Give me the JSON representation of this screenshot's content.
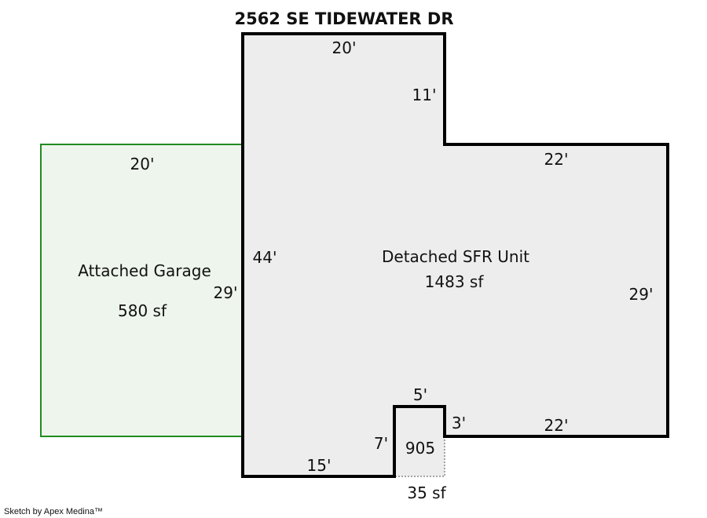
{
  "title": "2562 SE TIDEWATER DR",
  "credit": "Sketch by Apex Medina™",
  "colors": {
    "main_fill": "#ededed",
    "outline": "#000000",
    "garage_fill": "#eef5ec",
    "garage_outline": "#228b22"
  },
  "areas": {
    "main": {
      "name": "Detached SFR Unit",
      "area": "1483 sf"
    },
    "garage": {
      "name": "Attached Garage",
      "area": "580 sf"
    },
    "small": {
      "name": "905",
      "area": "35 sf"
    }
  },
  "dimensions": {
    "main_top": "20'",
    "main_notch_side": "11'",
    "main_right_top": "22'",
    "main_left": "44'",
    "main_right": "29'",
    "main_bottom_right": "22'",
    "main_bottom_left": "15'",
    "bump_top": "5'",
    "bump_right": "3'",
    "bump_left": "7'",
    "garage_top": "20'",
    "garage_right": "29'"
  }
}
